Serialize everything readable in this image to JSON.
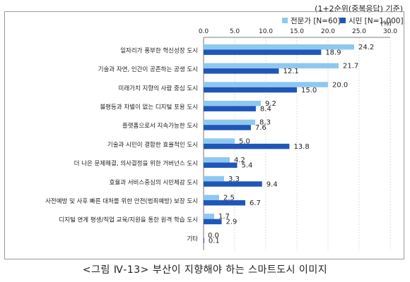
{
  "note": "(1+2순위(중복응답) 기준)",
  "caption": "<그림 Ⅳ-13> 부산이 지향해야 하는 스마트도시 이미지",
  "colors": {
    "series1": "#8ec8f0",
    "series2": "#1f56b8",
    "grid": "#d4d4d4",
    "axis": "#555555"
  },
  "chart_data": {
    "type": "bar",
    "orientation": "horizontal",
    "categories": [
      "일자리가 풍부한 혁신성장 도시",
      "기술과 자연, 인간이 공존하는 공생 도시",
      "미래가치 지향의 사람 중심 도시",
      "불평등과 차별이 없는 디지털 포용 도시",
      "플랫폼으로서 지속가능한 도시",
      "기술과 시민이 결합한 효율적인 도시",
      "더 나은 문제해결, 의사결정을 위한 거버넌스 도시",
      "효율과 서비스중심의 시민체감 도시",
      "사전예방 및 사후 빠른 대처를 위한 안전(범죄예방) 보장 도시",
      "디지털 연계 평생/직업 교육/지원을 통한 원격 학습 도시",
      "기타"
    ],
    "series": [
      {
        "name": "전문가 [N=60]",
        "values": [
          24.2,
          21.7,
          20.0,
          9.2,
          8.3,
          5.0,
          4.2,
          3.3,
          2.5,
          1.7,
          0.0
        ]
      },
      {
        "name": "시민 [N=1,000]",
        "values": [
          18.9,
          12.1,
          15.0,
          8.4,
          7.6,
          13.8,
          5.4,
          9.4,
          6.7,
          2.9,
          0.1
        ]
      }
    ],
    "value_labels": [
      [
        "24.2",
        "21.7",
        "20.0",
        "9.2",
        "8.3",
        "5.0",
        "4.2",
        "3.3",
        "2.5",
        "1.7",
        "0.0"
      ],
      [
        "18.9",
        "12.1",
        "15.0",
        "8.4",
        "7.6",
        "13.8",
        "5.4",
        "9.4",
        "6.7",
        "2.9",
        "0.1"
      ]
    ],
    "xticks": [
      "0.0",
      "5.0",
      "10.0",
      "15.0",
      "20.0",
      "25.0",
      "30.0"
    ],
    "xlim": [
      0,
      30
    ],
    "xunit": "(%)",
    "legend_position": "top-right",
    "grid": true
  }
}
